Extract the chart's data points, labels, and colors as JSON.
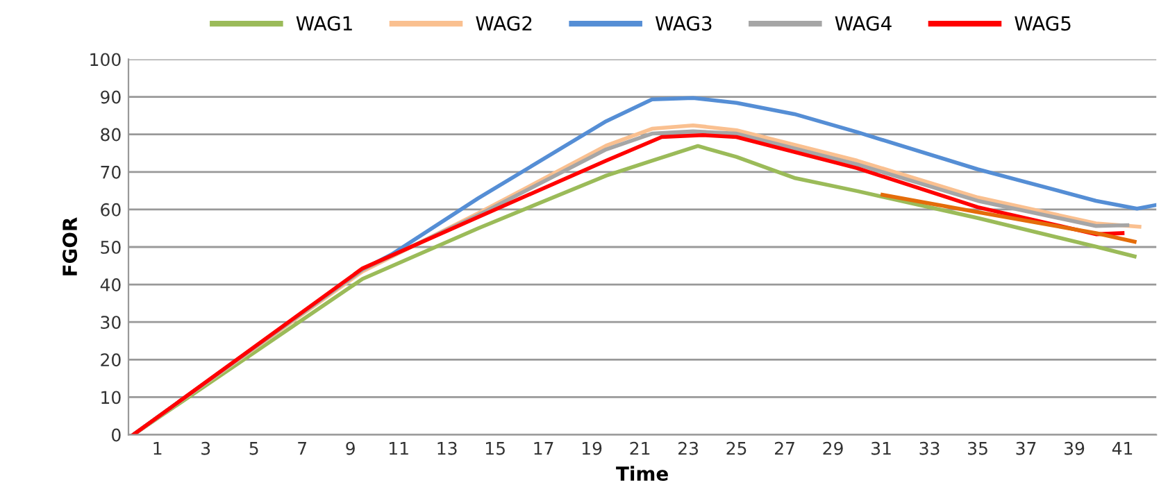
{
  "chart_data": {
    "type": "line",
    "xlabel": "Time",
    "ylabel": "FGOR",
    "xlim": [
      -0.2,
      42.4
    ],
    "xticks": [
      1,
      3,
      5,
      7,
      9,
      11,
      13,
      15,
      17,
      19,
      21,
      23,
      25,
      27,
      29,
      31,
      33,
      35,
      37,
      39,
      41
    ],
    "ylim": [
      0,
      100
    ],
    "yticks": [
      0,
      10,
      20,
      30,
      40,
      50,
      60,
      70,
      80,
      90,
      100
    ],
    "grid": "y",
    "legend": "top",
    "marker": "none",
    "line_style": "solid",
    "series": [
      {
        "name": "WAG1",
        "color": "#9bbb59",
        "x": [
          0,
          9.5,
          14.3,
          19.6,
          21.5,
          23.4,
          25,
          27.4,
          30,
          35,
          39.9,
          41.5
        ],
        "values": [
          0,
          41.5,
          55,
          69,
          73,
          76.9,
          74,
          68.4,
          64.9,
          57.7,
          50.1,
          47.5
        ]
      },
      {
        "name": "WAG2",
        "color": "#fac090",
        "x": [
          0,
          9.5,
          14.3,
          19.6,
          21.5,
          23.2,
          25,
          30,
          35,
          39.9,
          41.7
        ],
        "values": [
          0,
          43.5,
          59,
          77,
          81.5,
          82.4,
          81.1,
          73,
          63.2,
          56.3,
          55.4
        ]
      },
      {
        "name": "WAG3",
        "color": "#558ed5",
        "x": [
          0,
          9.5,
          10.7,
          14.3,
          19.6,
          21.5,
          23.2,
          25,
          27.4,
          30,
          35,
          39.9,
          41.6,
          42.4
        ],
        "values": [
          0,
          44,
          48,
          63,
          83.5,
          89.3,
          89.7,
          88.4,
          85.4,
          80.6,
          70.7,
          62.3,
          60.2,
          61.2
        ]
      },
      {
        "name": "WAG4",
        "color": "#a6a6a6",
        "x": [
          0,
          9.5,
          14.3,
          19.6,
          21.5,
          23.2,
          25,
          30,
          35,
          39.9,
          41.2
        ],
        "values": [
          0,
          44,
          58.5,
          76,
          80.2,
          80.8,
          80.2,
          72,
          62.3,
          55.6,
          55.8
        ]
      },
      {
        "name": "WAG5",
        "color": "#ff0000",
        "x": [
          0,
          9.5,
          14.3,
          19.6,
          21.9,
          23.6,
          25,
          30,
          35,
          39.9,
          41
        ],
        "values": [
          0,
          44.3,
          58,
          73,
          79.3,
          79.8,
          79.3,
          71,
          60.6,
          53.4,
          53.7
        ]
      },
      {
        "color": "#e46c0a",
        "x": [
          31.05,
          35,
          39.9,
          41.5
        ],
        "values": [
          63.9,
          59.3,
          53.7,
          51.4
        ]
      }
    ]
  }
}
